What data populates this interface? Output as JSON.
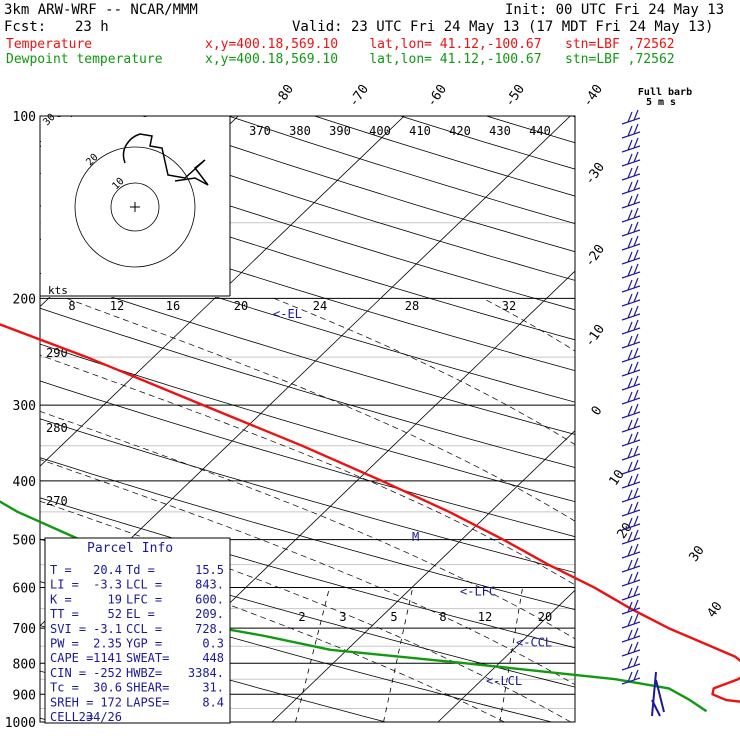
{
  "header": {
    "model": "3km ARW-WRF -- NCAR/MMM",
    "init": "Init: 00 UTC Fri 24 May 13",
    "fcst_label": "Fcst:",
    "fcst_value": "23 h",
    "valid": "Valid: 23 UTC Fri 24 May 13 (17 MDT Fri 24 May 13)"
  },
  "legend": [
    {
      "label": "Temperature",
      "location": "x,y=400.18,569.10    lat,lon= 41.12,-100.67   stn=LBF ,72562",
      "color": "#ee1111"
    },
    {
      "label": "Dewpoint temperature",
      "location": "x,y=400.18,569.10    lat,lon= 41.12,-100.67   stn=LBF ,72562",
      "color": "#119911"
    }
  ],
  "colors": {
    "temperature": "#ee1111",
    "dewpoint": "#119911",
    "annotation": "#1a1a99",
    "grid": "#000000"
  },
  "chart_data": {
    "type": "line",
    "title": "",
    "pressure_labels": [
      "100",
      "200",
      "300",
      "400",
      "500",
      "600",
      "700",
      "800",
      "900",
      "1000"
    ],
    "pressure_levels": [
      100,
      200,
      300,
      400,
      500,
      600,
      700,
      800,
      900,
      1000
    ],
    "isotherm_labels": [
      {
        "text": "-80",
        "t": -80
      },
      {
        "text": "-70",
        "t": -70
      },
      {
        "text": "-60",
        "t": -60
      },
      {
        "text": "-50",
        "t": -50
      },
      {
        "text": "-40",
        "t": -40
      },
      {
        "text": "-30",
        "t": -30
      },
      {
        "text": "-20",
        "t": -20
      },
      {
        "text": "-10",
        "t": -10
      },
      {
        "text": "0",
        "t": 0
      },
      {
        "text": "10",
        "t": 10
      },
      {
        "text": "20",
        "t": 20
      },
      {
        "text": "30",
        "t": 30
      },
      {
        "text": "40",
        "t": 40
      }
    ],
    "theta_labels": [
      "370",
      "380",
      "390",
      "400",
      "410",
      "420",
      "430",
      "440"
    ],
    "mixing_ratio_labels": [
      "2",
      "3",
      "5",
      "8",
      "12",
      "20"
    ],
    "hodograph_ticks": [
      "8",
      "12",
      "16",
      "20",
      "24",
      "28",
      "32"
    ],
    "side_labels": [
      "290",
      "280",
      "270"
    ],
    "kts_label": "kts",
    "hodo_ring_labels": [
      "10",
      "20",
      "30"
    ],
    "temperature": {
      "name": "Temperature",
      "points": [
        {
          "p": 960,
          "t": 19.5
        },
        {
          "p": 935,
          "t": 18.5
        },
        {
          "p": 920,
          "t": 16.0
        },
        {
          "p": 900,
          "t": 14.8
        },
        {
          "p": 880,
          "t": 14.5
        },
        {
          "p": 850,
          "t": 15.4
        },
        {
          "p": 820,
          "t": 15.6
        },
        {
          "p": 780,
          "t": 13.8
        },
        {
          "p": 700,
          "t": 8.0
        },
        {
          "p": 650,
          "t": 4.5
        },
        {
          "p": 600,
          "t": 1.0
        },
        {
          "p": 550,
          "t": -3.2
        },
        {
          "p": 500,
          "t": -7.5
        },
        {
          "p": 450,
          "t": -12.5
        },
        {
          "p": 400,
          "t": -18.5
        },
        {
          "p": 350,
          "t": -25.5
        },
        {
          "p": 300,
          "t": -34.0
        },
        {
          "p": 250,
          "t": -44.0
        },
        {
          "p": 220,
          "t": -51.5
        },
        {
          "p": 200,
          "t": -56.0
        },
        {
          "p": 180,
          "t": -58.5
        },
        {
          "p": 150,
          "t": -62.5
        },
        {
          "p": 130,
          "t": -64.0
        },
        {
          "p": 115,
          "t": -66.0
        },
        {
          "p": 100,
          "t": -68.5
        }
      ]
    },
    "dewpoint": {
      "name": "Dewpoint temperature",
      "points": [
        {
          "p": 960,
          "t": 15.5
        },
        {
          "p": 920,
          "t": 13.8
        },
        {
          "p": 880,
          "t": 11.8
        },
        {
          "p": 850,
          "t": 8.0
        },
        {
          "p": 800,
          "t": -2.0
        },
        {
          "p": 760,
          "t": -11.0
        },
        {
          "p": 720,
          "t": -16.0
        },
        {
          "p": 700,
          "t": -19.0
        },
        {
          "p": 650,
          "t": -20.5
        },
        {
          "p": 600,
          "t": -24.0
        },
        {
          "p": 550,
          "t": -28.5
        },
        {
          "p": 500,
          "t": -33.0
        },
        {
          "p": 450,
          "t": -38.5
        },
        {
          "p": 420,
          "t": -41.5
        },
        {
          "p": 380,
          "t": -47.0
        },
        {
          "p": 340,
          "t": -54.5
        },
        {
          "p": 300,
          "t": -62.0
        },
        {
          "p": 250,
          "t": -70.5
        },
        {
          "p": 200,
          "t": -79.5
        },
        {
          "p": 170,
          "t": -84.0
        },
        {
          "p": 140,
          "t": -87.0
        },
        {
          "p": 120,
          "t": -89.5
        },
        {
          "p": 100,
          "t": -93.0
        }
      ]
    },
    "levels_annotations": [
      {
        "text": "<-EL",
        "p": 209
      },
      {
        "text": "<-LFC",
        "p": 600
      },
      {
        "text": "<-CCL",
        "p": 728
      },
      {
        "text": "<-LCL",
        "p": 843
      }
    ],
    "m_marker": "M",
    "wind_barb_label_1": "Full barb",
    "wind_barb_label_2": "5 m s"
  },
  "parcel_info": {
    "title": "Parcel Info",
    "rows": [
      [
        "T =",
        "20.4",
        "Td =",
        "15.5"
      ],
      [
        "LI =",
        "-3.3",
        "LCL =",
        "843."
      ],
      [
        "K =",
        "19",
        "LFC =",
        "600."
      ],
      [
        "TT =",
        "52",
        "EL =",
        "209."
      ],
      [
        "SVI =",
        "-3.1",
        "CCL =",
        "728."
      ],
      [
        "PW =",
        "2.35",
        "YGP =",
        "0.3"
      ],
      [
        "CAPE =",
        "1141",
        "SWEAT=",
        "448"
      ],
      [
        "CIN =",
        "-252",
        "HWBZ=",
        "3384."
      ],
      [
        "Tc =",
        "30.6",
        "SHEAR=",
        "31."
      ],
      [
        "SREH =",
        "172",
        "LAPSE=",
        "8.4"
      ],
      [
        "CELL =",
        "234/26",
        "",
        ""
      ]
    ]
  }
}
